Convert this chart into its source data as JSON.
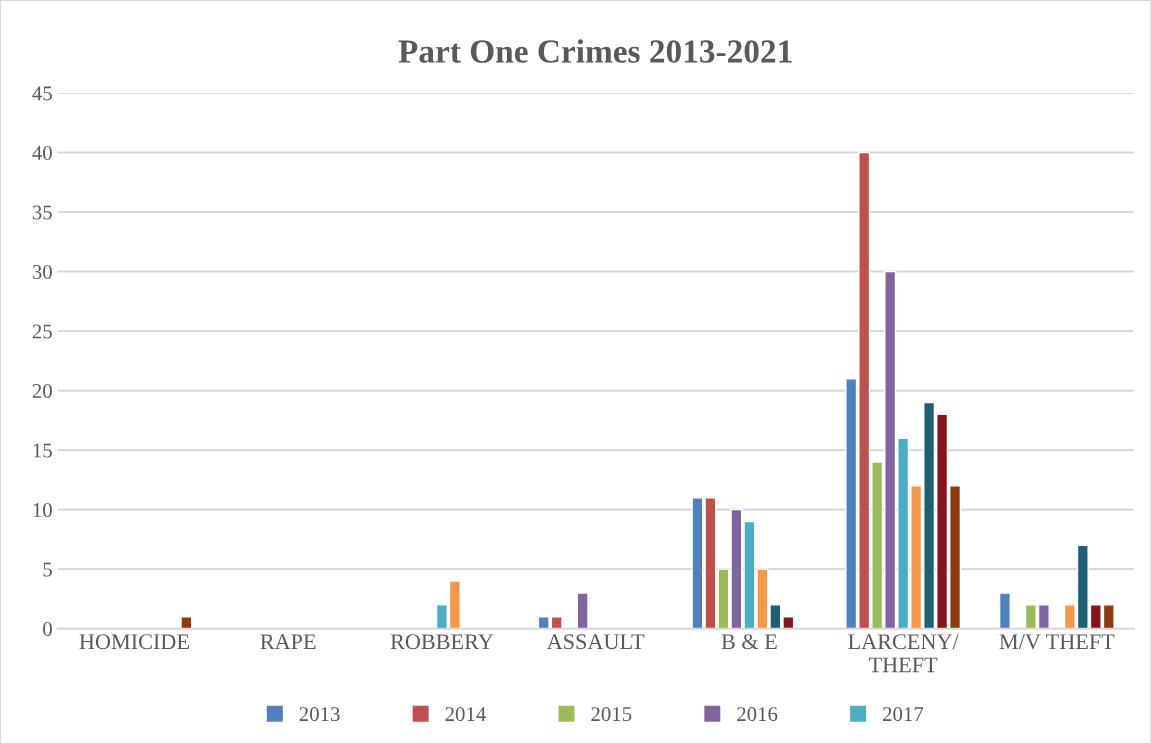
{
  "chart_data": {
    "type": "bar",
    "title": "Part One Crimes 2013-2021",
    "categories": [
      "HOMICIDE",
      "RAPE",
      "ROBBERY",
      "ASSAULT",
      "B & E",
      "LARCENY/\nTHEFT",
      "M/V THEFT"
    ],
    "series": [
      {
        "name": "2013",
        "color": "#4f81bd",
        "values": [
          null,
          null,
          null,
          1,
          11,
          21,
          3
        ]
      },
      {
        "name": "2014",
        "color": "#c0504d",
        "values": [
          null,
          null,
          null,
          1,
          11,
          40,
          null
        ]
      },
      {
        "name": "2015",
        "color": "#9bbb59",
        "values": [
          null,
          null,
          null,
          null,
          5,
          14,
          2
        ]
      },
      {
        "name": "2016",
        "color": "#8064a2",
        "values": [
          null,
          null,
          null,
          3,
          10,
          30,
          2
        ]
      },
      {
        "name": "2017",
        "color": "#4bacc6",
        "values": [
          null,
          null,
          2,
          null,
          9,
          16,
          null
        ]
      },
      {
        "color": "#f79646",
        "values": [
          null,
          null,
          4,
          null,
          5,
          12,
          2
        ]
      },
      {
        "color": "#1d6072",
        "values": [
          null,
          null,
          null,
          null,
          2,
          19,
          7
        ]
      },
      {
        "color": "#86141b",
        "values": [
          null,
          null,
          null,
          null,
          1,
          18,
          2
        ]
      },
      {
        "color": "#8e3a0c",
        "values": [
          1,
          null,
          null,
          null,
          null,
          12,
          2
        ]
      }
    ],
    "ylim": [
      0,
      45
    ],
    "yticks": [
      0,
      5,
      10,
      15,
      20,
      25,
      30,
      35,
      40,
      45
    ],
    "grid": "y",
    "legend": "bottom"
  }
}
